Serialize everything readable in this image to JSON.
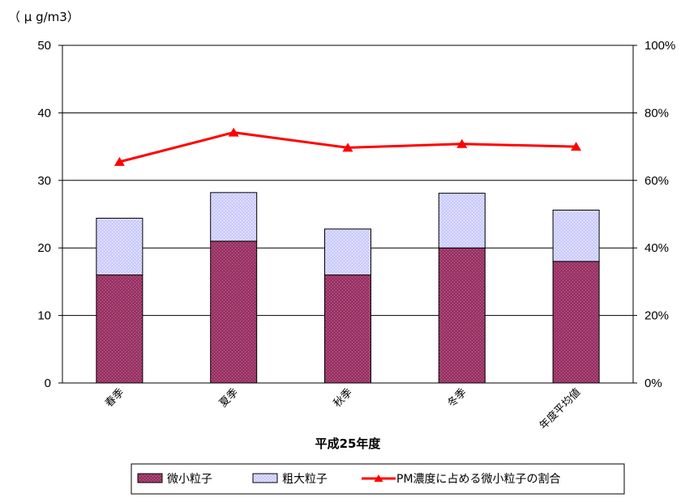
{
  "chart_data": {
    "type": "bar",
    "unit_label": "（ μ g/m3）",
    "xlabel": "平成25年度",
    "categories": [
      "春季",
      "夏季",
      "秋季",
      "冬季",
      "年度平均値"
    ],
    "series": [
      {
        "name": "微小粒子",
        "kind": "bar",
        "stack": "pm",
        "axis": "left",
        "color": "#993366",
        "values": [
          16.0,
          21.0,
          16.0,
          20.0,
          18.0
        ]
      },
      {
        "name": "粗大粒子",
        "kind": "bar",
        "stack": "pm",
        "axis": "left",
        "color": "#ccccff",
        "values": [
          8.4,
          7.2,
          6.8,
          8.1,
          7.6
        ]
      },
      {
        "name": "PM濃度に占める微小粒子の割合",
        "kind": "line",
        "axis": "right",
        "color": "#ff0000",
        "values": [
          65.5,
          74.2,
          69.7,
          70.8,
          70.0
        ]
      }
    ],
    "ylim": [
      0,
      50
    ],
    "yticks": [
      "0",
      "10",
      "20",
      "30",
      "40",
      "50"
    ],
    "y2lim": [
      0,
      100
    ],
    "y2ticks": [
      "0%",
      "20%",
      "40%",
      "60%",
      "80%",
      "100%"
    ],
    "grid": true,
    "legend": "bottom"
  }
}
